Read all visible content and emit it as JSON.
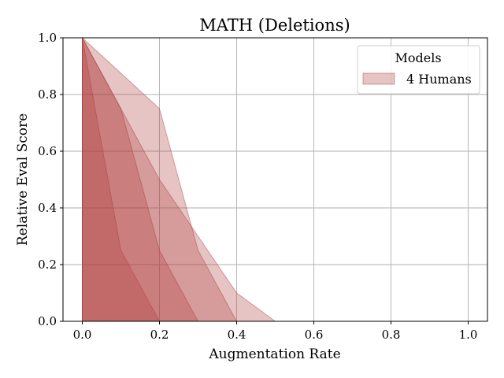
{
  "chart_data": {
    "type": "area",
    "title": "MATH (Deletions)",
    "xlabel": "Augmentation Rate",
    "ylabel": "Relative Eval Score",
    "xlim": [
      -0.05,
      1.05
    ],
    "ylim": [
      0.0,
      1.0
    ],
    "xticks": [
      "0.0",
      "0.2",
      "0.4",
      "0.6",
      "0.8",
      "1.0"
    ],
    "yticks": [
      "0.0",
      "0.2",
      "0.4",
      "0.6",
      "0.8",
      "1.0"
    ],
    "grid": true,
    "legend": {
      "title": "Models",
      "placement": "top-right",
      "entries": [
        "4 Humans"
      ]
    },
    "color": "#b03a3a",
    "series": [
      {
        "x": [
          0.0,
          0.1,
          0.2,
          0.3,
          0.4,
          0.5,
          0.6,
          0.7,
          0.8,
          0.9,
          1.0
        ],
        "values": [
          1.0,
          0.875,
          0.75,
          0.25,
          0.0,
          0.0,
          0.0,
          0.0,
          0.0,
          0.0,
          0.0
        ]
      },
      {
        "x": [
          0.0,
          0.1,
          0.2,
          0.3,
          0.4,
          0.5,
          0.6,
          0.7,
          0.8,
          0.9,
          1.0
        ],
        "values": [
          1.0,
          0.75,
          0.5,
          0.3,
          0.1,
          0.0,
          0.0,
          0.0,
          0.0,
          0.0,
          0.0
        ]
      },
      {
        "x": [
          0.0,
          0.1,
          0.2,
          0.3,
          0.4,
          0.5,
          0.6,
          0.7,
          0.8,
          0.9,
          1.0
        ],
        "values": [
          1.0,
          0.75,
          0.25,
          0.0,
          0.0,
          0.0,
          0.0,
          0.0,
          0.0,
          0.0,
          0.0
        ]
      },
      {
        "x": [
          0.0,
          0.1,
          0.2,
          0.3,
          0.4,
          0.5,
          0.6,
          0.7,
          0.8,
          0.9,
          1.0
        ],
        "values": [
          1.0,
          0.25,
          0.0,
          0.0,
          0.0,
          0.0,
          0.0,
          0.0,
          0.0,
          0.0,
          0.0
        ]
      }
    ]
  }
}
